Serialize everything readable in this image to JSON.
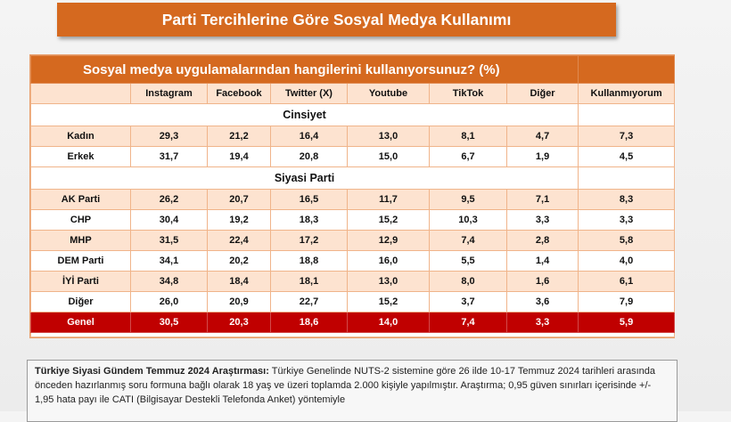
{
  "title": "Parti Tercihlerine Göre Sosyal Medya Kullanımı",
  "question": "Sosyal medya uygulamalarından hangilerini kullanıyorsunuz? (%)",
  "columns": [
    "Instagram",
    "Facebook",
    "Twitter (X)",
    "Youtube",
    "TikTok",
    "Diğer",
    "Kullanmıyorum"
  ],
  "sections": [
    {
      "name": "Cinsiyet",
      "rows": [
        {
          "label": "Kadın",
          "values": [
            "29,3",
            "21,2",
            "16,4",
            "13,0",
            "8,1",
            "4,7",
            "7,3"
          ]
        },
        {
          "label": "Erkek",
          "values": [
            "31,7",
            "19,4",
            "20,8",
            "15,0",
            "6,7",
            "1,9",
            "4,5"
          ]
        }
      ]
    },
    {
      "name": "Siyasi Parti",
      "rows": [
        {
          "label": "AK Parti",
          "values": [
            "26,2",
            "20,7",
            "16,5",
            "11,7",
            "9,5",
            "7,1",
            "8,3"
          ]
        },
        {
          "label": "CHP",
          "values": [
            "30,4",
            "19,2",
            "18,3",
            "15,2",
            "10,3",
            "3,3",
            "3,3"
          ]
        },
        {
          "label": "MHP",
          "values": [
            "31,5",
            "22,4",
            "17,2",
            "12,9",
            "7,4",
            "2,8",
            "5,8"
          ]
        },
        {
          "label": "DEM Parti",
          "values": [
            "34,1",
            "20,2",
            "18,8",
            "16,0",
            "5,5",
            "1,4",
            "4,0"
          ]
        },
        {
          "label": "İYİ Parti",
          "values": [
            "34,8",
            "18,4",
            "18,1",
            "13,0",
            "8,0",
            "1,6",
            "6,1"
          ]
        },
        {
          "label": "Diğer",
          "values": [
            "26,0",
            "20,9",
            "22,7",
            "15,2",
            "3,7",
            "3,6",
            "7,9"
          ]
        }
      ]
    }
  ],
  "total": {
    "label": "Genel",
    "values": [
      "30,5",
      "20,3",
      "18,6",
      "14,0",
      "7,4",
      "3,3",
      "5,9"
    ]
  },
  "note": {
    "bold": "Türkiye Siyasi Gündem Temmuz 2024 Araştırması:",
    "text": " Türkiye Genelinde  NUTS-2 sistemine göre 26 ilde 10-17 Temmuz 2024 tarihleri arasında önceden hazırlanmış soru formuna bağlı olarak 18 yaş ve üzeri toplamda 2.000 kişiyle yapılmıştır. Araştırma; 0,95 güven sınırları içerisinde +/- 1,95 hata payı ile CATI (Bilgisayar Destekli Telefonda Anket) yöntemiyle"
  },
  "colors": {
    "accent": "#d5691f",
    "row_tint": "#fde3d0",
    "total_bg": "#c00000"
  }
}
